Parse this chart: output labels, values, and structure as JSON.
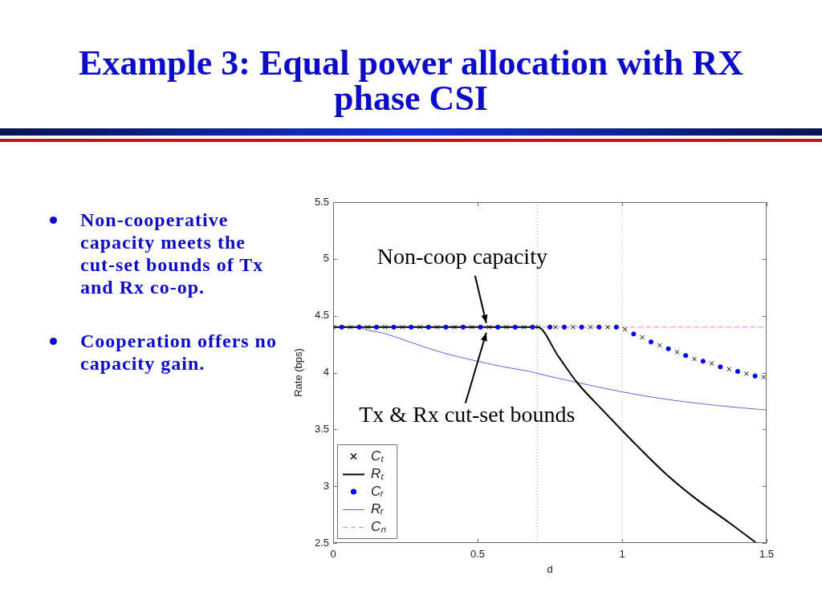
{
  "chart_data": {
    "type": "line",
    "title": "Example 3: Equal power allocation with RX phase CSI",
    "xlabel": "d",
    "ylabel": "Rate (bps)",
    "xlim": [
      0,
      1.5
    ],
    "xticks": [
      0,
      0.5,
      1,
      1.5
    ],
    "ylim": [
      2.5,
      5.5
    ],
    "yticks": [
      2.5,
      3,
      3.5,
      4,
      4.5,
      5,
      5.5
    ],
    "legend": "bottom left",
    "series": [
      {
        "name": "Cₜ",
        "type": "scatter",
        "marker": "cross",
        "color": "#000000",
        "x": [
          0,
          0.06,
          0.12,
          0.18,
          0.24,
          0.3,
          0.36,
          0.42,
          0.48,
          0.54,
          0.6,
          0.66,
          0.71,
          0.77,
          0.83,
          0.89,
          0.95,
          1.01,
          1.07,
          1.13,
          1.19,
          1.25,
          1.31,
          1.37,
          1.43,
          1.49
        ],
        "values": [
          4.4,
          4.4,
          4.4,
          4.4,
          4.4,
          4.4,
          4.4,
          4.4,
          4.4,
          4.4,
          4.4,
          4.4,
          4.4,
          4.4,
          4.4,
          4.4,
          4.4,
          4.38,
          4.31,
          4.24,
          4.18,
          4.12,
          4.08,
          4.03,
          3.99,
          3.96
        ]
      },
      {
        "name": "Rₜ",
        "line_style": "solid",
        "color": "#000000",
        "x": [
          0,
          0.707,
          0.78,
          0.845,
          0.94,
          1.0,
          1.05,
          1.155,
          1.26,
          1.37,
          1.465
        ],
        "values": [
          4.4,
          4.4,
          4.14,
          3.91,
          3.65,
          3.49,
          3.36,
          3.1,
          2.88,
          2.68,
          2.5
        ]
      },
      {
        "name": "Cᵣ",
        "type": "scatter",
        "marker": "circle",
        "color": "#0000ff",
        "x": [
          0.03,
          0.09,
          0.15,
          0.21,
          0.27,
          0.33,
          0.39,
          0.45,
          0.51,
          0.57,
          0.63,
          0.69,
          0.75,
          0.8,
          0.86,
          0.92,
          0.98,
          1.04,
          1.1,
          1.16,
          1.22,
          1.28,
          1.34,
          1.4,
          1.46
        ],
        "values": [
          4.4,
          4.4,
          4.4,
          4.4,
          4.4,
          4.4,
          4.4,
          4.4,
          4.4,
          4.4,
          4.4,
          4.4,
          4.4,
          4.4,
          4.4,
          4.4,
          4.4,
          4.34,
          4.27,
          4.21,
          4.15,
          4.1,
          4.05,
          4.01,
          3.97
        ]
      },
      {
        "name": "Rᵣ",
        "line_style": "solid",
        "color": "#6060f0",
        "x": [
          0,
          0.05,
          0.1,
          0.125,
          0.17,
          0.22,
          0.31,
          0.4,
          0.5,
          0.59,
          0.68,
          0.71,
          0.85,
          1.0,
          1.14,
          1.33,
          1.5
        ],
        "values": [
          4.4,
          4.4,
          4.39,
          4.37,
          4.35,
          4.31,
          4.23,
          4.16,
          4.1,
          4.05,
          4.01,
          3.99,
          3.91,
          3.83,
          3.77,
          3.71,
          3.67
        ]
      },
      {
        "name": "Cₙ",
        "line_style": "dashed",
        "color": "#ee80ee",
        "x": [
          0,
          1.5
        ],
        "values": [
          4.4,
          4.4
        ]
      }
    ],
    "ref_lines": [
      {
        "axis": "x",
        "value": 0.707,
        "line_style": "dotted",
        "color": "#a0a0a0"
      },
      {
        "axis": "x",
        "value": 1,
        "line_style": "dotted",
        "color": "#a0a0a0"
      }
    ],
    "annotations": [
      "Non-cooperative capacity meets the cut-set bounds of Tx and Rx co-op.",
      "Cooperation offers no capacity gain.",
      {
        "text": "Non-coop capacity",
        "x": 0.53,
        "y": 4.4
      },
      {
        "text": "Tx & Rx cut-set bounds",
        "x": 0.53,
        "y": 4.4
      }
    ]
  }
}
